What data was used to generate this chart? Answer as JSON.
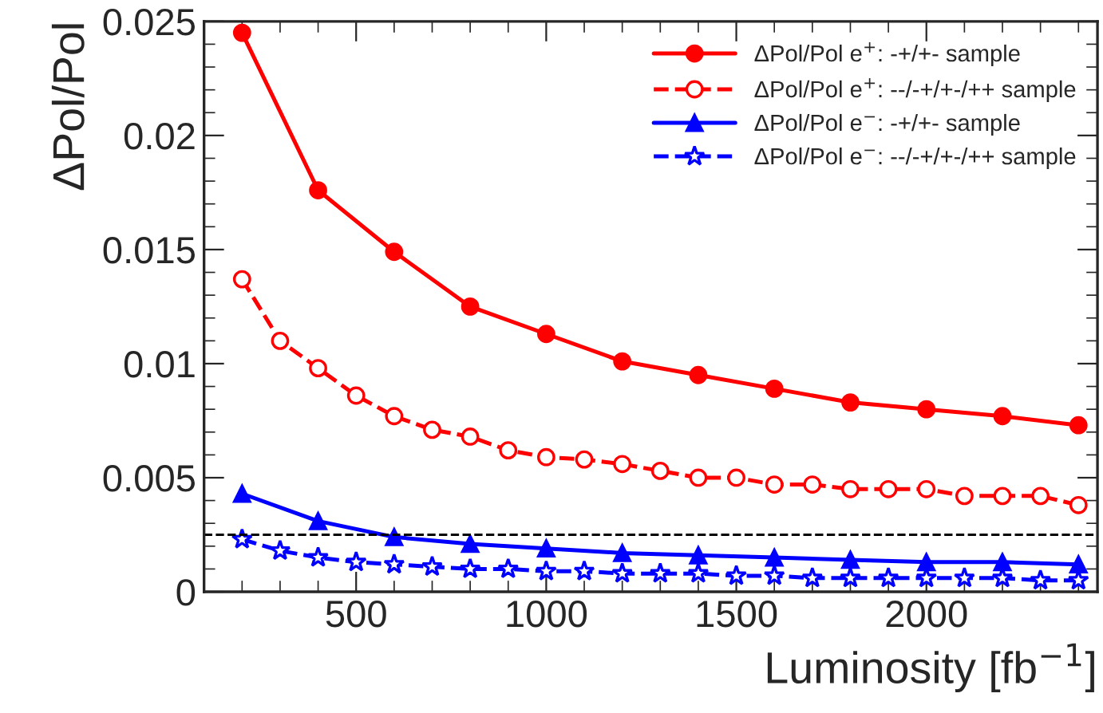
{
  "chart_data": {
    "type": "line",
    "xlabel": "Luminosity [fb$^{−1}$]",
    "ylabel": "ΔPol/Pol",
    "xlim": [
      100,
      2450
    ],
    "xticks": [
      500,
      1000,
      1500,
      2000
    ],
    "ylim": [
      0,
      0.025
    ],
    "yticks": [
      0,
      0.005,
      0.01,
      0.015,
      0.02,
      0.025
    ],
    "grid": false,
    "legend": "top right",
    "ref_lines": [
      {
        "axis": "y",
        "value": 0.0025,
        "color": "#000000",
        "line_style": "dashed"
      }
    ],
    "series": [
      {
        "name": "ΔPol/Pol e$^{+}$: -+/+- sample",
        "color": "#ff0000",
        "marker": "circle",
        "line_style": "solid",
        "x": [
          200,
          400,
          600,
          800,
          1000,
          1200,
          1400,
          1600,
          1800,
          2000,
          2200,
          2400
        ],
        "values": [
          0.0245,
          0.0176,
          0.0149,
          0.0125,
          0.0113,
          0.0101,
          0.0095,
          0.0089,
          0.0083,
          0.008,
          0.0077,
          0.0073
        ]
      },
      {
        "name": "ΔPol/Pol e$^{+}$: --/-+/+-/++ sample",
        "color": "#ff0000",
        "marker": "circle",
        "line_style": "dashed",
        "x": [
          200,
          300,
          400,
          500,
          600,
          700,
          800,
          900,
          1000,
          1100,
          1200,
          1300,
          1400,
          1500,
          1600,
          1700,
          1800,
          1900,
          2000,
          2100,
          2200,
          2300,
          2400
        ],
        "values": [
          0.0137,
          0.011,
          0.0098,
          0.0086,
          0.0077,
          0.0071,
          0.0068,
          0.0062,
          0.0059,
          0.0058,
          0.0056,
          0.0053,
          0.005,
          0.005,
          0.0047,
          0.0047,
          0.0045,
          0.0045,
          0.0045,
          0.0042,
          0.0042,
          0.0042,
          0.0038
        ]
      },
      {
        "name": "ΔPol/Pol e$^{−}$: -+/+- sample",
        "color": "#0000ff",
        "marker": "triangle",
        "line_style": "solid",
        "x": [
          200,
          400,
          600,
          800,
          1000,
          1200,
          1400,
          1600,
          1800,
          2000,
          2200,
          2400
        ],
        "values": [
          0.0043,
          0.0031,
          0.0024,
          0.0021,
          0.0019,
          0.0017,
          0.0016,
          0.0015,
          0.0014,
          0.0013,
          0.0013,
          0.0012
        ]
      },
      {
        "name": "ΔPol/Pol e$^{−}$: --/-+/+-/++ sample",
        "color": "#0000ff",
        "marker": "star",
        "line_style": "dashed",
        "x": [
          200,
          300,
          400,
          500,
          600,
          700,
          800,
          900,
          1000,
          1100,
          1200,
          1300,
          1400,
          1500,
          1600,
          1700,
          1800,
          1900,
          2000,
          2100,
          2200,
          2300,
          2400
        ],
        "values": [
          0.0023,
          0.0018,
          0.0015,
          0.0013,
          0.0012,
          0.0011,
          0.001,
          0.001,
          0.0009,
          0.0009,
          0.0008,
          0.0008,
          0.0008,
          0.0007,
          0.0007,
          0.0006,
          0.0006,
          0.0006,
          0.0006,
          0.0006,
          0.0006,
          0.0005,
          0.0005
        ]
      }
    ]
  }
}
